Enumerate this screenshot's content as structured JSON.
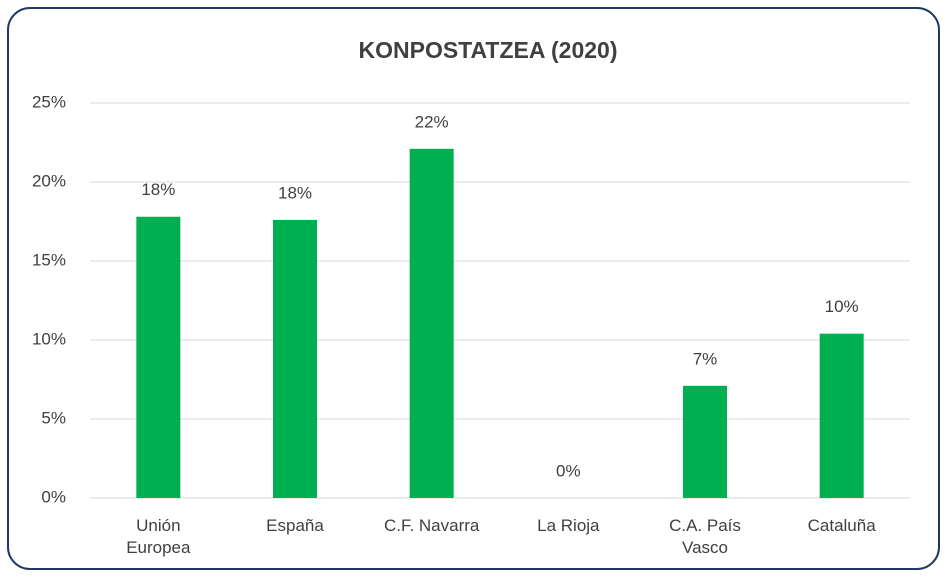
{
  "chart_data": {
    "type": "bar",
    "title": "KONPOSTATZEA (2020)",
    "categories": [
      "Unión Europea",
      "España",
      "C.F. Navarra",
      "La Rioja",
      "C.A. País Vasco",
      "Cataluña"
    ],
    "values": [
      17.8,
      17.6,
      22.1,
      0,
      7.1,
      10.4
    ],
    "value_labels": [
      "18%",
      "18%",
      "22%",
      "0%",
      "7%",
      "10%"
    ],
    "color": "#00b050",
    "ylim": [
      0,
      25
    ],
    "yticks": [
      {
        "value": 0,
        "label": "0%"
      },
      {
        "value": 5,
        "label": "5%"
      },
      {
        "value": 10,
        "label": "10%"
      },
      {
        "value": 15,
        "label": "15%"
      },
      {
        "value": 20,
        "label": "20%"
      },
      {
        "value": 25,
        "label": "25%"
      }
    ],
    "grid": true
  }
}
